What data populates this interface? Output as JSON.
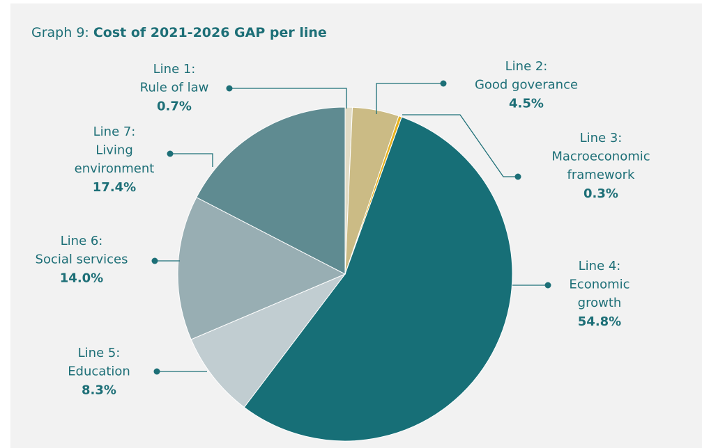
{
  "chart_data": {
    "type": "pie",
    "title_label": "Graph 9:",
    "title": "Cost of 2021-2026 GAP per line",
    "categories": [
      "Line 1:\nRule of law",
      "Line 2:\nGood goverance",
      "Line 3:\nMacroeconomic\nframework",
      "Line 4:\nEconomic\ngrowth",
      "Line 5:\nEducation",
      "Line 6:\nSocial services",
      "Line 7:\nLiving\nenvironment"
    ],
    "values": [
      0.7,
      4.5,
      0.3,
      54.8,
      8.3,
      14.0,
      17.4
    ],
    "value_labels": [
      "0.7%",
      "4.5%",
      "0.3%",
      "54.8%",
      "8.3%",
      "14.0%",
      "17.4%"
    ],
    "colors": [
      "#e2dcc6",
      "#cbbb85",
      "#e8b31f",
      "#176f77",
      "#c1cdd1",
      "#98aeb3",
      "#5f8b91"
    ]
  }
}
